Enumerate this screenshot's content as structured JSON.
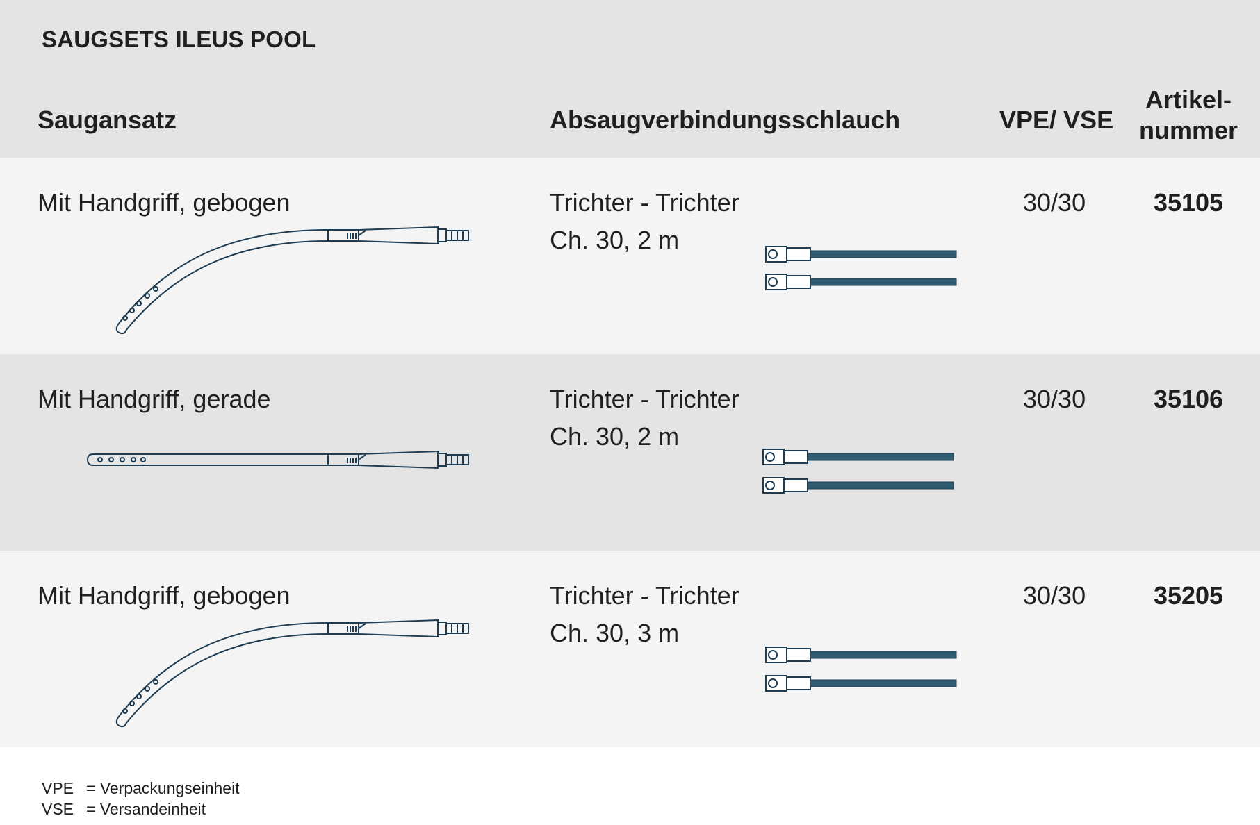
{
  "title": "SAUGSETS ILEUS POOL",
  "columns": {
    "saugansatz": "Saugansatz",
    "schlauch": "Absaugverbindungsschlauch",
    "vpe": "VPE/ VSE",
    "artikel_line1": "Artikel-",
    "artikel_line2": "nummer"
  },
  "rows": [
    {
      "saugansatz": "Mit Handgriff, gebogen",
      "schlauch_line1": "Trichter - Trichter",
      "schlauch_line2": "Ch. 30, 2 m",
      "vpe": "30/30",
      "artikelnummer": "35105",
      "shape": "curved"
    },
    {
      "saugansatz": "Mit Handgriff, gerade",
      "schlauch_line1": "Trichter - Trichter",
      "schlauch_line2": "Ch. 30, 2 m",
      "vpe": "30/30",
      "artikelnummer": "35106",
      "shape": "straight"
    },
    {
      "saugansatz": "Mit Handgriff, gebogen",
      "schlauch_line1": "Trichter - Trichter",
      "schlauch_line2": "Ch. 30, 3 m",
      "vpe": "30/30",
      "artikelnummer": "35205",
      "shape": "curved"
    }
  ],
  "legend": [
    {
      "abbr": "VPE",
      "text": "= Verpackungseinheit"
    },
    {
      "abbr": "VSE",
      "text": "= Versandeinheit"
    }
  ],
  "colors": {
    "outline": "#1e3d52",
    "tube": "#2e5b70",
    "header_band": "#e4e4e4",
    "row_light": "#f4f4f4",
    "row_dark": "#e4e4e4"
  },
  "icons": [
    "suction-tip-curved-icon",
    "suction-tip-straight-icon",
    "connection-tube-icon"
  ]
}
